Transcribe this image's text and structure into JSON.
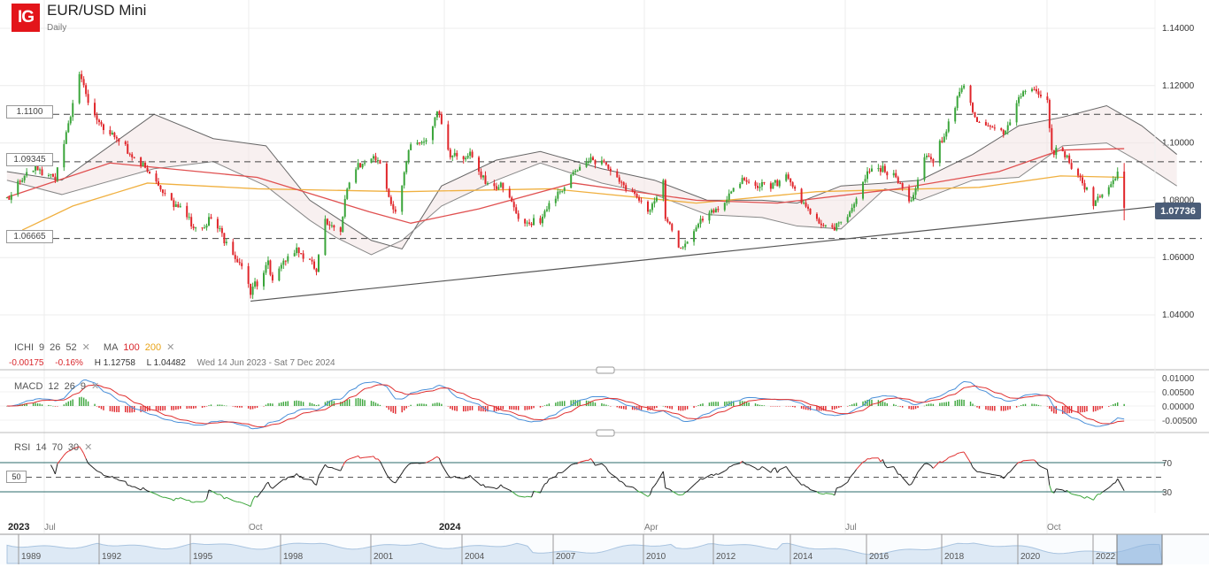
{
  "header": {
    "logo": "IG",
    "title": "EUR/USD Mini",
    "interval": "Daily"
  },
  "legend": {
    "ichi_label": "ICHI",
    "ichi_params": [
      "9",
      "26",
      "52"
    ],
    "ma_label": "MA",
    "ma_params": [
      "100",
      "200"
    ],
    "change": "-0.00175",
    "change_pct": "-0.16%",
    "high": "H 1.12758",
    "low": "L 1.04482",
    "range": "Wed 14 Jun 2023 - Sat 7 Dec 2024",
    "macd_label": "MACD",
    "macd_params": [
      "12",
      "26",
      "9"
    ],
    "rsi_label": "RSI",
    "rsi_params": [
      "14",
      "70",
      "30"
    ],
    "close_icon": "x-icon"
  },
  "levels": [
    "1.1100",
    "1.09345",
    "1.06665"
  ],
  "last_price": "1.07736",
  "rsi_mid_label": "50",
  "colors": {
    "up": "#3aa53a",
    "down": "#e0262b",
    "ma100": "#e05050",
    "ma200": "#f0b040",
    "macd": "#4a90d9",
    "signal": "#e03030",
    "tag": "#4b5d78",
    "logo": "#e3151a"
  },
  "chart_data": {
    "type": "candlestick",
    "title": "EUR/USD Mini",
    "price_ticks": [
      "1.14000",
      "1.12000",
      "1.10000",
      "1.08000",
      "1.06000",
      "1.04000"
    ],
    "ylim": [
      1.035,
      1.145
    ],
    "grid": true,
    "time_labels": [
      {
        "t": "2023",
        "bold": true
      },
      {
        "t": "Jul"
      },
      {
        "t": "Oct"
      },
      {
        "t": "2024",
        "bold": true
      },
      {
        "t": "Apr"
      },
      {
        "t": "Jul"
      },
      {
        "t": "Oct"
      }
    ],
    "closes": [
      [
        "2023-06-14",
        1.081
      ],
      [
        "2023-06-27",
        1.092
      ],
      [
        "2023-07-06",
        1.087
      ],
      [
        "2023-07-17",
        1.124
      ],
      [
        "2023-07-21",
        1.114
      ],
      [
        "2023-07-31",
        1.103
      ],
      [
        "2023-08-11",
        1.095
      ],
      [
        "2023-08-17",
        1.09
      ],
      [
        "2023-08-28",
        1.08
      ],
      [
        "2023-09-08",
        1.0705
      ],
      [
        "2023-09-15",
        1.0735
      ],
      [
        "2023-09-22",
        1.0655
      ],
      [
        "2023-09-29",
        1.057
      ],
      [
        "2023-10-03",
        1.047
      ],
      [
        "2023-10-11",
        1.059
      ],
      [
        "2023-10-13",
        1.052
      ],
      [
        "2023-10-24",
        1.0635
      ],
      [
        "2023-11-02",
        1.055
      ],
      [
        "2023-11-06",
        1.0735
      ],
      [
        "2023-11-13",
        1.069
      ],
      [
        "2023-11-16",
        1.084
      ],
      [
        "2023-11-21",
        1.093
      ],
      [
        "2023-11-30",
        1.094
      ],
      [
        "2023-12-04",
        1.084
      ],
      [
        "2023-12-08",
        1.076
      ],
      [
        "2023-12-15",
        1.0995
      ],
      [
        "2023-12-22",
        1.101
      ],
      [
        "2023-12-27",
        1.111
      ],
      [
        "2024-01-02",
        1.095
      ],
      [
        "2024-01-04",
        1.0965
      ],
      [
        "2024-01-12",
        1.095
      ],
      [
        "2024-01-16",
        1.088
      ],
      [
        "2024-01-26",
        1.084
      ],
      [
        "2024-02-02",
        1.0735
      ],
      [
        "2024-02-12",
        1.072
      ],
      [
        "2024-02-20",
        1.083
      ],
      [
        "2024-03-06",
        1.095
      ],
      [
        "2024-03-18",
        1.088
      ],
      [
        "2024-04-01",
        1.076
      ],
      [
        "2024-04-08",
        1.087
      ],
      [
        "2024-04-09",
        1.0735
      ],
      [
        "2024-04-15",
        1.0635
      ],
      [
        "2024-04-19",
        1.0655
      ],
      [
        "2024-04-23",
        1.0705
      ],
      [
        "2024-05-02",
        1.077
      ],
      [
        "2024-05-15",
        1.087
      ],
      [
        "2024-05-27",
        1.084
      ],
      [
        "2024-06-03",
        1.089
      ],
      [
        "2024-06-07",
        1.084
      ],
      [
        "2024-06-10",
        1.079
      ],
      [
        "2024-06-17",
        1.0735
      ],
      [
        "2024-06-25",
        1.0695
      ],
      [
        "2024-07-02",
        1.076
      ],
      [
        "2024-07-11",
        1.09
      ],
      [
        "2024-07-17",
        1.092
      ],
      [
        "2024-07-24",
        1.086
      ],
      [
        "2024-07-30",
        1.08
      ],
      [
        "2024-08-05",
        1.095
      ],
      [
        "2024-08-09",
        1.093
      ],
      [
        "2024-08-16",
        1.1075
      ],
      [
        "2024-08-23",
        1.12
      ],
      [
        "2024-08-28",
        1.109
      ],
      [
        "2024-09-03",
        1.106
      ],
      [
        "2024-09-10",
        1.103
      ],
      [
        "2024-09-17",
        1.116
      ],
      [
        "2024-09-25",
        1.118
      ],
      [
        "2024-09-30",
        1.115
      ],
      [
        "2024-10-02",
        1.0975
      ],
      [
        "2024-10-08",
        1.095
      ],
      [
        "2024-10-15",
        1.088
      ],
      [
        "2024-10-21",
        1.078
      ],
      [
        "2024-10-24",
        1.081
      ],
      [
        "2024-10-30",
        1.087
      ],
      [
        "2024-11-01",
        1.09
      ],
      [
        "2024-11-04",
        1.07736
      ]
    ],
    "ma100": [
      [
        "2023-06-14",
        1.081
      ],
      [
        "2023-07-31",
        1.093
      ],
      [
        "2023-10-06",
        1.088
      ],
      [
        "2023-11-26",
        1.076
      ],
      [
        "2023-12-15",
        1.072
      ],
      [
        "2024-01-15",
        1.077
      ],
      [
        "2024-02-27",
        1.086
      ],
      [
        "2024-04-23",
        1.08
      ],
      [
        "2024-05-30",
        1.079
      ],
      [
        "2024-07-24",
        1.084
      ],
      [
        "2024-09-08",
        1.09
      ],
      [
        "2024-10-06",
        1.0975
      ],
      [
        "2024-11-04",
        1.098
      ]
    ],
    "ma200": [
      [
        "2023-06-21",
        1.0696
      ],
      [
        "2023-07-14",
        1.078
      ],
      [
        "2023-08-17",
        1.086
      ],
      [
        "2023-10-06",
        1.084
      ],
      [
        "2023-12-12",
        1.083
      ],
      [
        "2024-02-17",
        1.084
      ],
      [
        "2024-04-23",
        1.079
      ],
      [
        "2024-06-17",
        1.083
      ],
      [
        "2024-08-30",
        1.0845
      ],
      [
        "2024-10-06",
        1.0885
      ],
      [
        "2024-11-04",
        1.088
      ]
    ],
    "ichimoku_cloud": [
      [
        "2023-06-14",
        1.09,
        1.087
      ],
      [
        "2023-07-09",
        1.087,
        1.082
      ],
      [
        "2023-08-20",
        1.11,
        1.091
      ],
      [
        "2023-09-16",
        1.1015,
        1.0935
      ],
      [
        "2023-10-10",
        1.099,
        1.085
      ],
      [
        "2023-10-30",
        1.08,
        1.073
      ],
      [
        "2023-11-11",
        1.074,
        1.067
      ],
      [
        "2023-11-27",
        1.066,
        1.061
      ],
      [
        "2023-12-11",
        1.063,
        1.066
      ],
      [
        "2023-12-29",
        1.085,
        1.078
      ],
      [
        "2024-01-23",
        1.094,
        1.087
      ],
      [
        "2024-02-12",
        1.097,
        1.093
      ],
      [
        "2024-03-11",
        1.091,
        1.086
      ],
      [
        "2024-04-04",
        1.087,
        1.082
      ],
      [
        "2024-04-28",
        1.08,
        1.075
      ],
      [
        "2024-05-23",
        1.08,
        1.074
      ],
      [
        "2024-06-08",
        1.079,
        1.071
      ],
      [
        "2024-06-28",
        1.085,
        1.07
      ],
      [
        "2024-07-18",
        1.086,
        1.084
      ],
      [
        "2024-08-03",
        1.087,
        1.08
      ],
      [
        "2024-08-27",
        1.096,
        1.087
      ],
      [
        "2024-09-17",
        1.106,
        1.088
      ],
      [
        "2024-10-07",
        1.109,
        1.099
      ],
      [
        "2024-10-27",
        1.113,
        1.1
      ],
      [
        "2024-11-12",
        1.106,
        1.093
      ],
      [
        "2024-11-28",
        1.096,
        1.085
      ]
    ],
    "trendline": [
      [
        "2023-10-03",
        1.0448
      ],
      [
        "2024-11-18",
        1.0778
      ]
    ],
    "horizontal_levels": [
      1.11,
      1.09345,
      1.06665
    ],
    "macd_ticks": [
      "0.01000",
      "0.00500",
      "0.00000",
      "-0.00500"
    ],
    "rsi_ticks": [
      "70",
      "30"
    ],
    "navigator_years": [
      "1989",
      "1992",
      "1995",
      "1998",
      "2001",
      "2004",
      "2007",
      "2010",
      "2012",
      "2014",
      "2016",
      "2018",
      "2020",
      "2022"
    ]
  }
}
